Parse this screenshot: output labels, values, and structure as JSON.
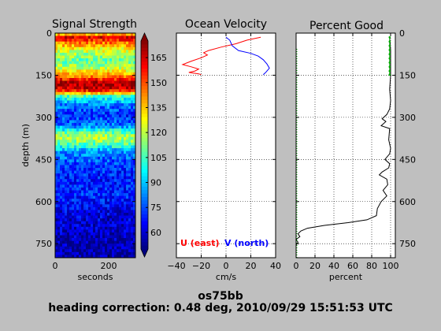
{
  "figure": {
    "caption_line1": "os75bb",
    "caption_line2": "heading correction:  0.48 deg, 2010/09/29 15:51:53 UTC"
  },
  "chart_data": [
    {
      "type": "heatmap",
      "title": "Signal Strength",
      "xlabel": "seconds",
      "ylabel": "depth (m)",
      "xlim": [
        0,
        300
      ],
      "ylim": [
        800,
        0
      ],
      "xticks": [
        "0",
        "200"
      ],
      "yticks": [
        "0",
        "150",
        "300",
        "450",
        "600",
        "750"
      ],
      "colorbar": {
        "min": 50,
        "max": 175,
        "ticks": [
          "60",
          "75",
          "90",
          "105",
          "120",
          "135",
          "150",
          "165"
        ]
      },
      "depth_profile": [
        {
          "depth": 0,
          "value": 110
        },
        {
          "depth": 10,
          "value": 165
        },
        {
          "depth": 20,
          "value": 160
        },
        {
          "depth": 40,
          "value": 140
        },
        {
          "depth": 60,
          "value": 125
        },
        {
          "depth": 80,
          "value": 115
        },
        {
          "depth": 100,
          "value": 108
        },
        {
          "depth": 120,
          "value": 118
        },
        {
          "depth": 140,
          "value": 132
        },
        {
          "depth": 160,
          "value": 150
        },
        {
          "depth": 175,
          "value": 168
        },
        {
          "depth": 190,
          "value": 170
        },
        {
          "depth": 205,
          "value": 158
        },
        {
          "depth": 225,
          "value": 105
        },
        {
          "depth": 250,
          "value": 85
        },
        {
          "depth": 290,
          "value": 70
        },
        {
          "depth": 330,
          "value": 80
        },
        {
          "depth": 350,
          "value": 105
        },
        {
          "depth": 370,
          "value": 120
        },
        {
          "depth": 390,
          "value": 112
        },
        {
          "depth": 420,
          "value": 85
        },
        {
          "depth": 470,
          "value": 72
        },
        {
          "depth": 520,
          "value": 68
        },
        {
          "depth": 580,
          "value": 70
        },
        {
          "depth": 640,
          "value": 62
        },
        {
          "depth": 700,
          "value": 58
        },
        {
          "depth": 800,
          "value": 54
        }
      ]
    },
    {
      "type": "line",
      "title": "Ocean Velocity",
      "xlabel": "cm/s",
      "ylabel": "",
      "xlim": [
        -40,
        40
      ],
      "ylim": [
        800,
        0
      ],
      "xticks": [
        "−40",
        "−20",
        "0",
        "20",
        "40"
      ],
      "yticks": [
        0,
        150,
        300,
        450,
        600,
        750
      ],
      "legend": "bottom",
      "series": [
        {
          "name": "U (east)",
          "color": "#ff0000",
          "points": [
            {
              "x": 28,
              "y": 15
            },
            {
              "x": 17,
              "y": 25
            },
            {
              "x": 8,
              "y": 38
            },
            {
              "x": -4,
              "y": 50
            },
            {
              "x": -14,
              "y": 62
            },
            {
              "x": -18,
              "y": 70
            },
            {
              "x": -15,
              "y": 78
            },
            {
              "x": -20,
              "y": 88
            },
            {
              "x": -28,
              "y": 100
            },
            {
              "x": -35,
              "y": 112
            },
            {
              "x": -28,
              "y": 120
            },
            {
              "x": -22,
              "y": 128
            },
            {
              "x": -25,
              "y": 135
            },
            {
              "x": -30,
              "y": 140
            },
            {
              "x": -22,
              "y": 145
            },
            {
              "x": -20,
              "y": 148
            }
          ]
        },
        {
          "name": "V (north)",
          "color": "#0000ff",
          "points": [
            {
              "x": 0,
              "y": 15
            },
            {
              "x": 3,
              "y": 25
            },
            {
              "x": 4,
              "y": 35
            },
            {
              "x": 5,
              "y": 45
            },
            {
              "x": 10,
              "y": 62
            },
            {
              "x": 20,
              "y": 72
            },
            {
              "x": 26,
              "y": 82
            },
            {
              "x": 30,
              "y": 95
            },
            {
              "x": 33,
              "y": 110
            },
            {
              "x": 35,
              "y": 125
            },
            {
              "x": 32,
              "y": 140
            },
            {
              "x": 30,
              "y": 148
            }
          ]
        }
      ]
    },
    {
      "type": "line",
      "title": "Percent Good",
      "xlabel": "percent",
      "ylabel": "",
      "xlim": [
        0,
        105
      ],
      "ylim": [
        800,
        0
      ],
      "xticks": [
        "0",
        "20",
        "40",
        "60",
        "80",
        "100"
      ],
      "yticks": [
        "0",
        "150",
        "300",
        "450",
        "600",
        "750"
      ],
      "series": [
        {
          "name": "",
          "color": "#000000",
          "points": [
            {
              "x": 99,
              "y": 15
            },
            {
              "x": 100,
              "y": 60
            },
            {
              "x": 100,
              "y": 120
            },
            {
              "x": 100,
              "y": 150
            },
            {
              "x": 99,
              "y": 200
            },
            {
              "x": 100,
              "y": 240
            },
            {
              "x": 99,
              "y": 270
            },
            {
              "x": 96,
              "y": 290
            },
            {
              "x": 91,
              "y": 305
            },
            {
              "x": 95,
              "y": 315
            },
            {
              "x": 90,
              "y": 330
            },
            {
              "x": 99,
              "y": 340
            },
            {
              "x": 98,
              "y": 380
            },
            {
              "x": 100,
              "y": 410
            },
            {
              "x": 99,
              "y": 430
            },
            {
              "x": 94,
              "y": 450
            },
            {
              "x": 99,
              "y": 465
            },
            {
              "x": 98,
              "y": 480
            },
            {
              "x": 91,
              "y": 495
            },
            {
              "x": 88,
              "y": 505
            },
            {
              "x": 96,
              "y": 520
            },
            {
              "x": 97,
              "y": 540
            },
            {
              "x": 92,
              "y": 560
            },
            {
              "x": 96,
              "y": 580
            },
            {
              "x": 90,
              "y": 600
            },
            {
              "x": 86,
              "y": 625
            },
            {
              "x": 85,
              "y": 650
            },
            {
              "x": 75,
              "y": 665
            },
            {
              "x": 55,
              "y": 675
            },
            {
              "x": 30,
              "y": 685
            },
            {
              "x": 12,
              "y": 695
            },
            {
              "x": 5,
              "y": 705
            },
            {
              "x": 2,
              "y": 715
            },
            {
              "x": 4,
              "y": 725
            },
            {
              "x": 0,
              "y": 735
            },
            {
              "x": 2,
              "y": 745
            },
            {
              "x": 0,
              "y": 755
            }
          ]
        },
        {
          "name": "",
          "color": "#00aa00",
          "points": [
            {
              "x": 99,
              "y": 15
            },
            {
              "x": 99,
              "y": 30
            },
            {
              "x": 99,
              "y": 45
            },
            {
              "x": 99,
              "y": 60
            },
            {
              "x": 99,
              "y": 75
            },
            {
              "x": 99,
              "y": 90
            },
            {
              "x": 99,
              "y": 105
            },
            {
              "x": 99,
              "y": 120
            },
            {
              "x": 99,
              "y": 135
            },
            {
              "x": 99,
              "y": 148
            }
          ]
        }
      ]
    }
  ]
}
